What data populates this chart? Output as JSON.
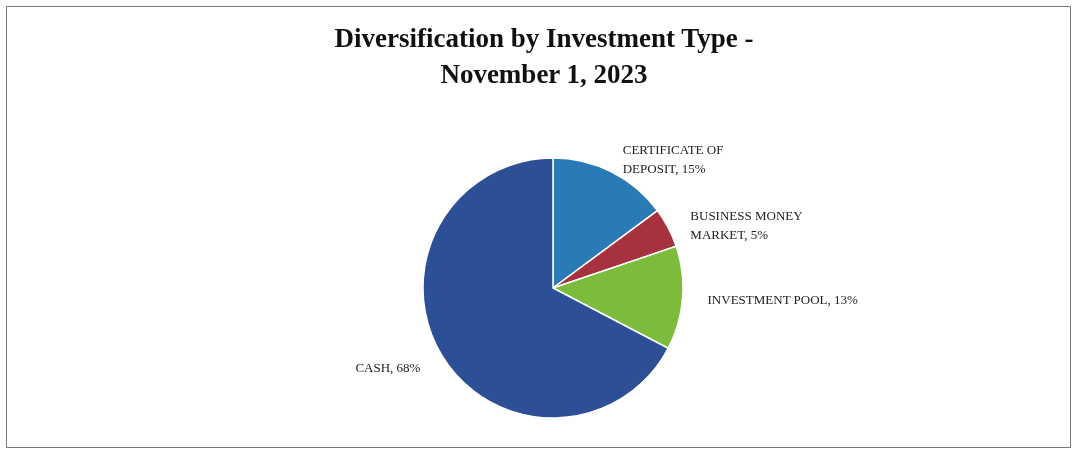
{
  "chart_data": {
    "type": "pie",
    "title": "Diversification by Investment Type - November 1, 2023",
    "categories": [
      "CERTIFICATE OF DEPOSIT",
      "BUSINESS MONEY MARKET",
      "INVESTMENT POOL",
      "CASH"
    ],
    "values": [
      15,
      5,
      13,
      68
    ],
    "value_labels": [
      "15%",
      "5%",
      "13%",
      "68%"
    ],
    "colors": [
      "#2a7ab6",
      "#a8313f",
      "#7dbb3c",
      "#2d4f96"
    ]
  }
}
